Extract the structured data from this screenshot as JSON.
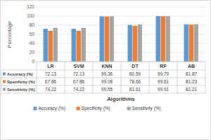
{
  "chart_data": {
    "type": "bar",
    "x_label": "Algorithms",
    "y_label": "Percentage",
    "categories": [
      "LR",
      "SVM",
      "KNN",
      "DT",
      "RF",
      "AB"
    ],
    "series": [
      {
        "name": "Accuracy (%)",
        "color": "#5b9bd5",
        "values": [
          72.13,
          72.13,
          99.36,
          80.59,
          99.79,
          81.87
        ]
      },
      {
        "name": "Specificity (%)",
        "color": "#ed7d31",
        "values": [
          67.86,
          67.86,
          99.08,
          78.66,
          99.61,
          81.23
        ]
      },
      {
        "name": "Sensitivity (%)",
        "color": "#a5a5a5",
        "values": [
          74.22,
          74.22,
          99.55,
          81.61,
          99.91,
          82.21
        ]
      }
    ],
    "ylim": [
      0,
      120
    ],
    "yticks": [
      0,
      20,
      40,
      60,
      80,
      100,
      120
    ],
    "grid": true,
    "legend": "bottom"
  }
}
